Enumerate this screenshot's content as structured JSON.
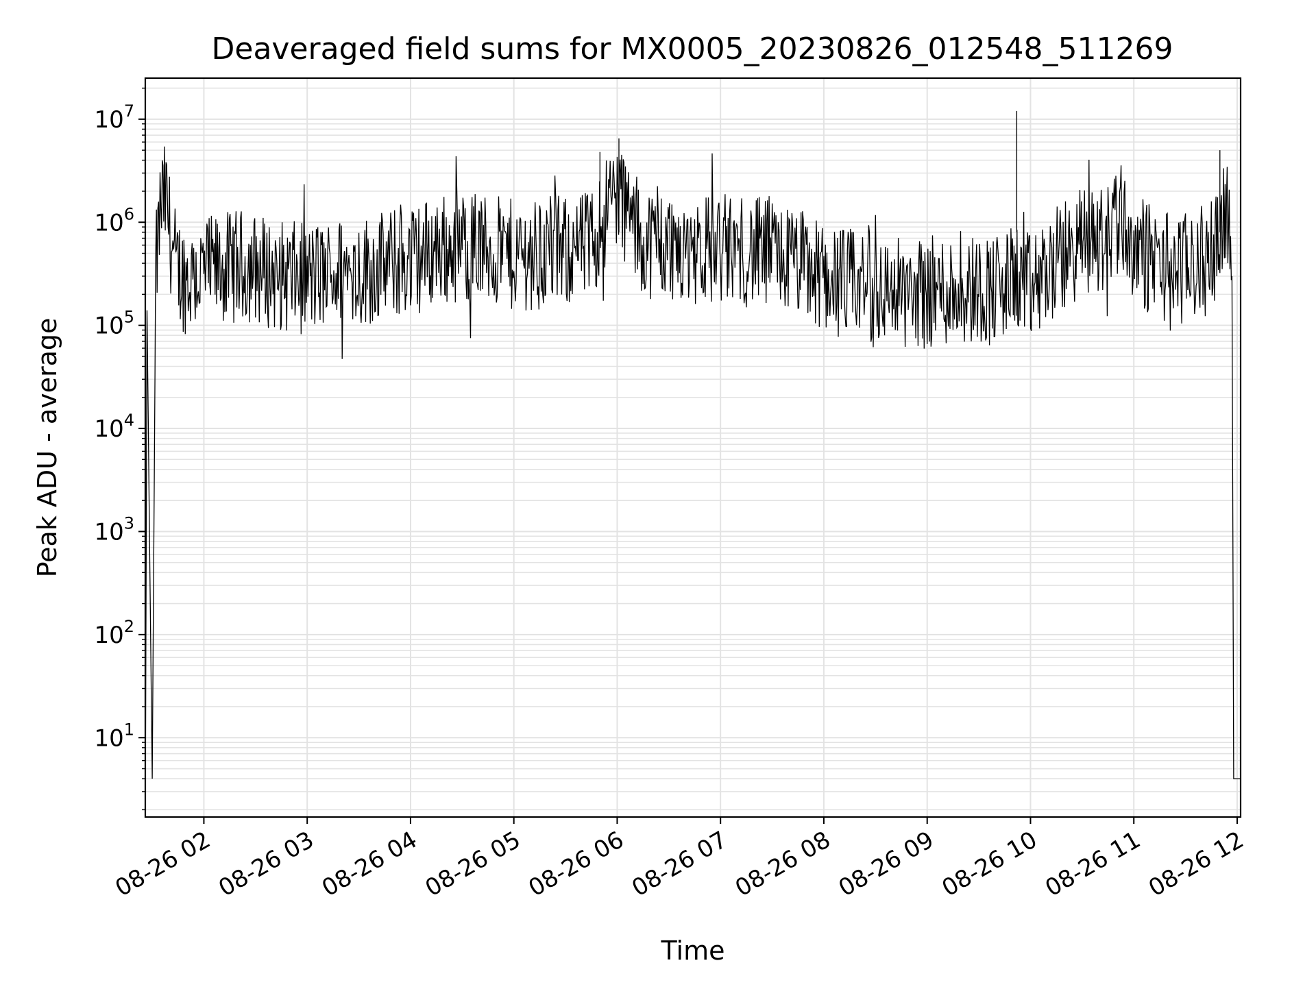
{
  "chart_data": {
    "type": "line",
    "title": "Deaveraged field sums for MX0005_20230826_012548_511269",
    "xlabel": "Time",
    "ylabel": "Peak ADU - average",
    "yscale": "log",
    "xlim": [
      "08-26 01:26",
      "08-26 12:02"
    ],
    "ylim": [
      1.7,
      25000000
    ],
    "grid": true,
    "x_ticks": [
      "08-26 02",
      "08-26 03",
      "08-26 04",
      "08-26 05",
      "08-26 06",
      "08-26 07",
      "08-26 08",
      "08-26 09",
      "08-26 10",
      "08-26 11",
      "08-26 12"
    ],
    "y_ticks": [
      {
        "base": "10",
        "exp": "1"
      },
      {
        "base": "10",
        "exp": "2"
      },
      {
        "base": "10",
        "exp": "3"
      },
      {
        "base": "10",
        "exp": "4"
      },
      {
        "base": "10",
        "exp": "5"
      },
      {
        "base": "10",
        "exp": "6"
      },
      {
        "base": "10",
        "exp": "7"
      }
    ],
    "series": [
      {
        "color": "#000000",
        "x": [
          "08-26 01:26",
          "08-26 01:27",
          "08-26 01:30",
          "08-26 01:32",
          "08-26 01:35",
          "08-26 01:38",
          "08-26 01:40",
          "08-26 01:42",
          "08-26 01:45",
          "08-26 01:48",
          "08-26 01:50",
          "08-26 01:55",
          "08-26 02:00",
          "08-26 02:10",
          "08-26 02:20",
          "08-26 02:30",
          "08-26 02:45",
          "08-26 03:00",
          "08-26 03:15",
          "08-26 03:30",
          "08-26 03:45",
          "08-26 04:00",
          "08-26 04:15",
          "08-26 04:30",
          "08-26 04:45",
          "08-26 05:00",
          "08-26 05:15",
          "08-26 05:30",
          "08-26 05:45",
          "08-26 05:55",
          "08-26 06:00",
          "08-26 06:10",
          "08-26 06:15",
          "08-26 06:30",
          "08-26 06:45",
          "08-26 07:00",
          "08-26 07:15",
          "08-26 07:30",
          "08-26 07:45",
          "08-26 08:00",
          "08-26 08:15",
          "08-26 08:30",
          "08-26 08:45",
          "08-26 09:00",
          "08-26 09:15",
          "08-26 09:30",
          "08-26 09:45",
          "08-26 09:50",
          "08-26 10:00",
          "08-26 10:15",
          "08-26 10:30",
          "08-26 10:45",
          "08-26 10:50",
          "08-26 11:00",
          "08-26 11:15",
          "08-26 11:30",
          "08-26 11:45",
          "08-26 11:50",
          "08-26 11:53",
          "08-26 11:55",
          "08-26 11:57",
          "08-26 11:58",
          "08-26 12:00",
          "08-26 12:02"
        ],
        "y": [
          2,
          140000,
          4,
          300000,
          1500000,
          1700000,
          900000,
          500000,
          350000,
          300000,
          280000,
          300000,
          320000,
          350000,
          380000,
          360000,
          300000,
          280000,
          320000,
          330000,
          380000,
          420000,
          550000,
          600000,
          520000,
          480000,
          500000,
          520000,
          600000,
          1500000,
          2000000,
          900000,
          650000,
          600000,
          560000,
          550000,
          520000,
          480000,
          400000,
          300000,
          250000,
          230000,
          210000,
          210000,
          220000,
          230000,
          220000,
          300000,
          220000,
          400000,
          650000,
          700000,
          1500000,
          550000,
          400000,
          350000,
          450000,
          1000000,
          1500000,
          800000,
          300000,
          4,
          4,
          4
        ]
      }
    ]
  }
}
